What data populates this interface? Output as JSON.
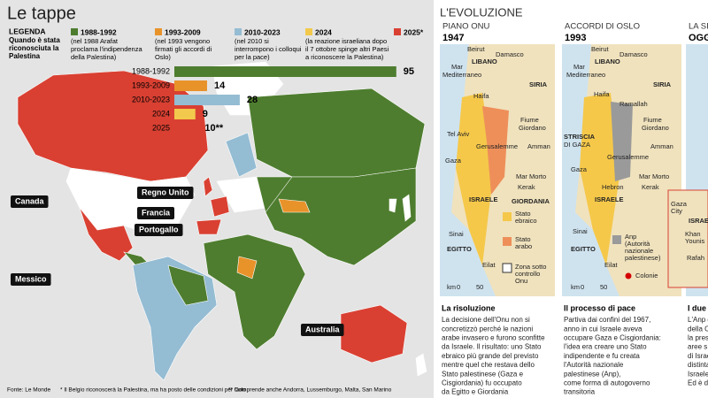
{
  "header": {
    "title": "Le tappe"
  },
  "legend": {
    "title": "LEGENDA",
    "subtitle": "Quando è stata riconosciuta la Palestina",
    "items": [
      {
        "label": "1988-1992",
        "note": "(nel 1988 Arafat proclama l'indipendenza della Palestina)",
        "color": "#4e7d2f"
      },
      {
        "label": "1993-2009",
        "note": "(nel 1993 vengono firmati gli accordi di Oslo)",
        "color": "#e8922a"
      },
      {
        "label": "2010-2023",
        "note": "(nel 2010 si interrompono i colloqui per la pace)",
        "color": "#94bcd3"
      },
      {
        "label": "2024",
        "note": "(la reazione israeliana dopo il 7 ottobre spinge altri Paesi a riconoscere la Palestina)",
        "color": "#f2c94c"
      },
      {
        "label": "2025*",
        "color": "#d94032"
      }
    ]
  },
  "chart_data": {
    "type": "bar",
    "orientation": "horizontal",
    "categories": [
      "1988-1992",
      "1993-2009",
      "2010-2023",
      "2024",
      "2025"
    ],
    "values": [
      95,
      14,
      28,
      9,
      10
    ],
    "value_labels": [
      "95",
      "14",
      "28",
      "9",
      "10**"
    ],
    "colors": [
      "#4e7d2f",
      "#e8922a",
      "#94bcd3",
      "#f2c94c",
      "#d94032"
    ]
  },
  "map_labels": [
    "Regno Unito",
    "Francia",
    "Portogallo",
    "Canada",
    "Messico",
    "Australia"
  ],
  "footer": {
    "source": "Fonte: Le Monde",
    "note1": "* Il Belgio riconoscerà la Palestina, ma ha posto delle condizioni per farlo",
    "note2": "** Comprende anche Andorra, Lussemburgo, Malta, San Marino"
  },
  "evolution": {
    "title": "L'EVOLUZIONE",
    "panels": [
      {
        "heading": "PIANO ONU",
        "year": "1947",
        "labels": [
          "Beirut",
          "Damasco",
          "LIBANO",
          "Mar",
          "Mediterraneo",
          "SIRIA",
          "Haifa",
          "Fiume",
          "Giordano",
          "Tel Aviv",
          "Amman",
          "Gerusalemme",
          "Gaza",
          "Mar Morto",
          "Kerak",
          "ISRAELE",
          "GIORDANIA",
          "Stato",
          "ebraico",
          "Stato",
          "arabo",
          "Zona sotto",
          "controllo",
          "Onu",
          "Sinai",
          "EGITTO",
          "Eilat",
          "km",
          "0",
          "50"
        ],
        "caption_title": "La risoluzione",
        "caption": [
          "La decisione dell'Onu non si",
          "concretizzò perché le nazioni",
          "arabe invasero e furono sconfitte",
          "da Israele. Il risultato: uno Stato",
          "ebraico più grande del previsto",
          "mentre quel che restava dello",
          "Stato palestinese (Gaza e",
          "Cisgiordania) fu occupato",
          "da Egitto e Giordania"
        ]
      },
      {
        "heading": "ACCORDI DI OSLO",
        "year": "1993",
        "labels": [
          "Beirut",
          "Damasco",
          "LIBANO",
          "Mar",
          "Mediterraneo",
          "SIRIA",
          "Haifa",
          "Ramallah",
          "Fiume",
          "Giordano",
          "Amman",
          "STRISCIA",
          "DI GAZA",
          "Gerusalemme",
          "Gaza",
          "Mar Morto",
          "Kerak",
          "Hebron",
          "ISRAELE",
          "Anp",
          "(Autorità",
          "nazionale",
          "palestinese)",
          "Colonie",
          "Sinai",
          "EGITTO",
          "Eilat",
          "km",
          "0",
          "50"
        ],
        "caption_title": "Il processo di pace",
        "caption": [
          "Partiva dai confini del 1967,",
          "anno in cui Israele aveva",
          "occupare  Gaza e Cisgiordania:",
          "l'idea era creare  uno Stato",
          "indipendente e fu creata",
          "l'Autorità nazionale",
          "palestinese (Anp),",
          "come forma di autogoverno",
          "transitoria"
        ]
      },
      {
        "heading": "LA SIT",
        "year": "OGG",
        "labels": [
          "Gaza",
          "City",
          "ISRAE",
          "Khan",
          "Younis",
          "Rafah"
        ],
        "caption_title": "I due t",
        "caption": [
          "L'Anp g",
          "della Cis",
          "la prese",
          "aree  s",
          "di Israel",
          "distinta",
          "Israele",
          "Ed è dis"
        ]
      }
    ]
  }
}
